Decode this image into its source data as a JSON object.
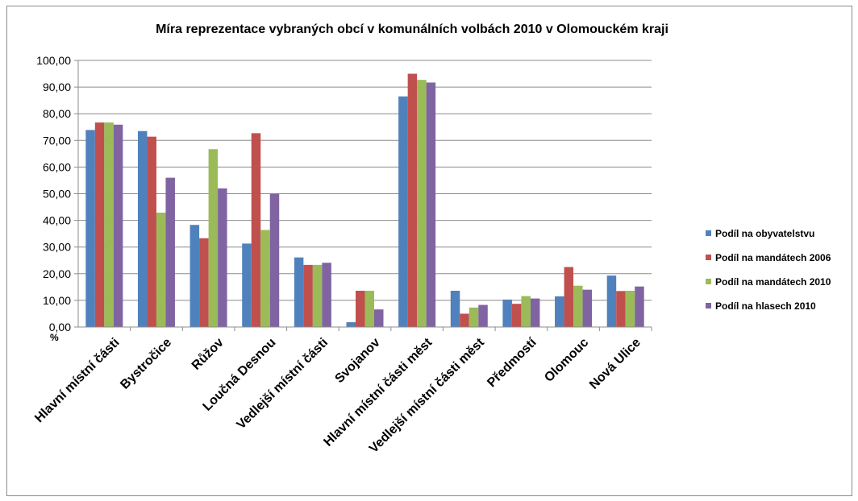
{
  "chart_data": {
    "type": "bar",
    "title": "Míra reprezentace vybraných obcí v komunálních volbách 2010 v Olomouckém kraji",
    "ylabel": "%",
    "xlabel": "",
    "ylim": [
      0,
      100
    ],
    "yticks": [
      "0,00",
      "10,00",
      "20,00",
      "30,00",
      "40,00",
      "50,00",
      "60,00",
      "70,00",
      "80,00",
      "90,00",
      "100,00"
    ],
    "grid": true,
    "legend_position": "right",
    "categories": [
      "Hlavní místní části",
      "Bystročice",
      "Růžov",
      "Loučná Desnou",
      "Vedlejší místní části",
      "Svojanov",
      "Hlavní místní části měst",
      "Vedlejší místní části měst",
      "Předmostí",
      "Olomouc",
      "Nová Ulice"
    ],
    "series": [
      {
        "name": "Podíl na obyvatelstvu",
        "color": "#4f81bd",
        "values": [
          73.9,
          73.5,
          38.3,
          31.3,
          26.1,
          1.8,
          86.5,
          13.6,
          10.3,
          11.5,
          19.3
        ]
      },
      {
        "name": "Podíl na mandátech 2006",
        "color": "#c0504d",
        "values": [
          76.7,
          71.4,
          33.3,
          72.7,
          23.3,
          13.6,
          95.0,
          5.0,
          8.7,
          22.5,
          13.5
        ]
      },
      {
        "name": "Podíl na mandátech 2010",
        "color": "#9bbb59",
        "values": [
          76.7,
          42.9,
          66.7,
          36.4,
          23.3,
          13.6,
          92.7,
          7.3,
          11.6,
          15.5,
          13.6
        ]
      },
      {
        "name": "Podíl na hlasech 2010",
        "color": "#8064a2",
        "values": [
          75.9,
          56.0,
          52.0,
          50.0,
          24.1,
          6.6,
          91.7,
          8.3,
          10.7,
          14.0,
          15.2
        ]
      }
    ]
  }
}
